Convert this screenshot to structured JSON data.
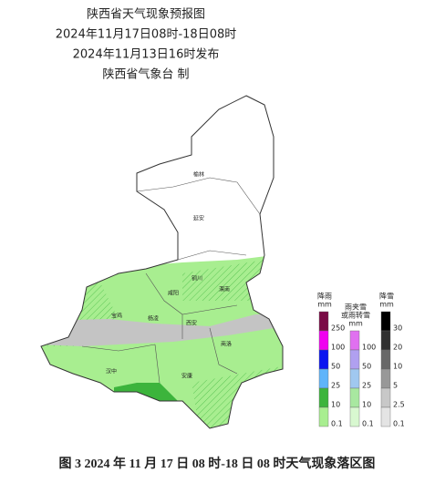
{
  "header": {
    "title": "陕西省天气现象预报图",
    "period": "2024年11月17日08时-18日08时",
    "issued": "2024年11月13日16时发布",
    "issuer": "陕西省气象台 制"
  },
  "cities": [
    {
      "label": "榆林"
    },
    {
      "label": "延安"
    },
    {
      "label": "铜川"
    },
    {
      "label": "咸阳"
    },
    {
      "label": "渭南"
    },
    {
      "label": "宝鸡"
    },
    {
      "label": "杨凌"
    },
    {
      "label": "西安"
    },
    {
      "label": "商洛"
    },
    {
      "label": "汉中"
    },
    {
      "label": "安康"
    }
  ],
  "legend": {
    "rain": {
      "title": [
        "降雨",
        "mm"
      ],
      "levels": [
        250,
        100,
        50,
        25,
        10,
        0.1
      ],
      "colors": [
        "#7a0a46",
        "#f000f0",
        "#0a14f0",
        "#5fb4fa",
        "#3cb43c",
        "#a8ee90"
      ]
    },
    "sleet": {
      "title": [
        "雨夹雪",
        "或雨转雪",
        "mm"
      ],
      "levels": [
        100,
        50,
        25,
        10,
        0.1
      ],
      "colors": [
        "#e070f0",
        "#b0a0f0",
        "#a0c8f0",
        "#a8e8a0",
        "#d8f8d0"
      ]
    },
    "snow": {
      "title": [
        "降雪",
        "mm"
      ],
      "levels": [
        30,
        20,
        10,
        5,
        2.5,
        0.1
      ],
      "colors": [
        "#000000",
        "#303030",
        "#686868",
        "#989898",
        "#c8c8c8",
        "#e4e4e4"
      ]
    }
  },
  "caption": "图 3 2024 年 11 月 17 日 08 时-18 日 08 时天气现象落区图"
}
